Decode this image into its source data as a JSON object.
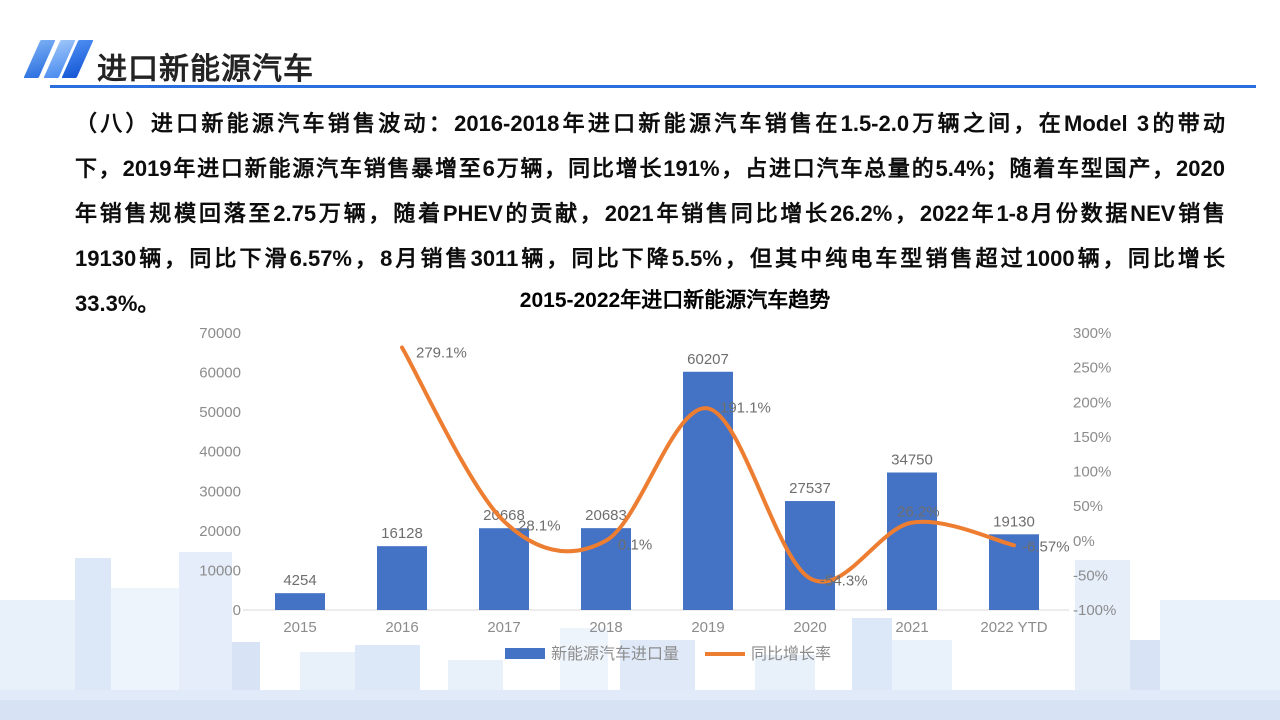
{
  "header": {
    "title": "进口新能源汽车"
  },
  "paragraph": {
    "lines": [
      "（八）进口新能源汽车销售波动：2016-2018年进口新能源汽车销售在1.5-2.0万辆之间，在Model 3的带动",
      "下，2019年进口新能源汽车销售暴增至6万辆，同比增长191%，占进口汽车总量的5.4%；随着车型国产，2020",
      "年销售规模回落至2.75万辆，随着PHEV的贡献，2021年销售同比增长26.2%，2022年1-8月份数据NEV销售",
      "19130辆，同比下滑6.57%，8月销售3011辆，同比下降5.5%，但其中纯电车型销售超过1000辆，同比增长",
      "33.3%。"
    ]
  },
  "chart_data": {
    "type": "combo-bar-line",
    "title": "2015-2022年进口新能源汽车趋势",
    "categories": [
      "2015",
      "2016",
      "2017",
      "2018",
      "2019",
      "2020",
      "2021",
      "2022 YTD"
    ],
    "series": [
      {
        "name": "新能源汽车进口量",
        "type": "bar",
        "axis": "left",
        "values": [
          4254,
          16128,
          20668,
          20683,
          60207,
          27537,
          34750,
          19130
        ],
        "labels": [
          "4254",
          "16128",
          "20668",
          "20683",
          "60207",
          "27537",
          "34750",
          "19130"
        ]
      },
      {
        "name": "同比增长率",
        "type": "line",
        "axis": "right",
        "values": [
          null,
          279.1,
          28.1,
          0.1,
          191.1,
          -54.3,
          26.2,
          -6.57
        ],
        "labels": [
          null,
          "279.1%",
          "28.1%",
          "0.1%",
          "191.1%",
          "-54.3%",
          "26.2%",
          "-6.57%"
        ],
        "label_dx": [
          null,
          14,
          14,
          12,
          12,
          10,
          -15,
          8
        ],
        "label_dy": [
          null,
          6,
          5,
          5,
          0,
          3,
          -10,
          2
        ]
      }
    ],
    "left_axis": {
      "min": 0,
      "max": 70000,
      "step": 10000,
      "tick_labels": [
        "0",
        "10000",
        "20000",
        "30000",
        "40000",
        "50000",
        "60000",
        "70000"
      ]
    },
    "right_axis": {
      "min": -100,
      "max": 300,
      "step": 50,
      "tick_labels": [
        "300%",
        "250%",
        "200%",
        "150%",
        "100%",
        "50%",
        "0%",
        "-50%",
        "-100%"
      ]
    },
    "legend": [
      {
        "label": "新能源汽车进口量",
        "type": "bar"
      },
      {
        "label": "同比增长率",
        "type": "line"
      }
    ],
    "grid": false,
    "legend_position": "bottom",
    "colors": {
      "bar": "#4472C4",
      "line": "#ED7D31",
      "axis_line": "#d9d9d9"
    }
  }
}
